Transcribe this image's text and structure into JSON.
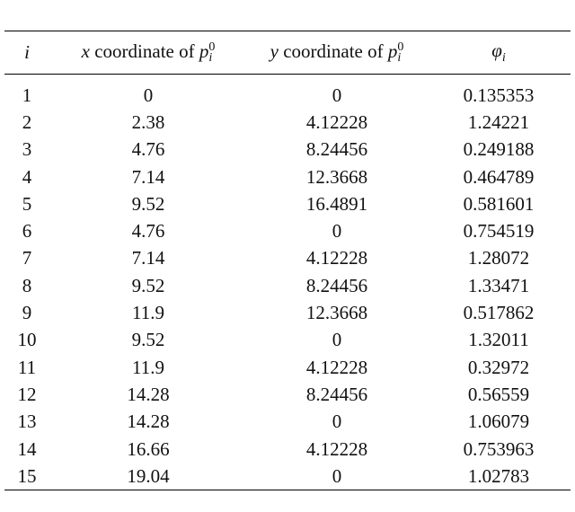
{
  "table": {
    "headers": [
      "i",
      "x coordinate of p_i^0",
      "y coordinate of p_i^0",
      "φ_i"
    ],
    "header_parts": {
      "x_var": "x",
      "y_var": "y",
      "coord_text": " coordinate of ",
      "p": "p",
      "sub": "i",
      "sup": "0",
      "phi": "ϕ",
      "i": "i"
    },
    "rows": [
      [
        "1",
        "0",
        "0",
        "0.135353"
      ],
      [
        "2",
        "2.38",
        "4.12228",
        "1.24221"
      ],
      [
        "3",
        "4.76",
        "8.24456",
        "0.249188"
      ],
      [
        "4",
        "7.14",
        "12.3668",
        "0.464789"
      ],
      [
        "5",
        "9.52",
        "16.4891",
        "0.581601"
      ],
      [
        "6",
        "4.76",
        "0",
        "0.754519"
      ],
      [
        "7",
        "7.14",
        "4.12228",
        "1.28072"
      ],
      [
        "8",
        "9.52",
        "8.24456",
        "1.33471"
      ],
      [
        "9",
        "11.9",
        "12.3668",
        "0.517862"
      ],
      [
        "10",
        "9.52",
        "0",
        "1.32011"
      ],
      [
        "11",
        "11.9",
        "4.12228",
        "0.32972"
      ],
      [
        "12",
        "14.28",
        "8.24456",
        "0.56559"
      ],
      [
        "13",
        "14.28",
        "0",
        "1.06079"
      ],
      [
        "14",
        "16.66",
        "4.12228",
        "0.753963"
      ],
      [
        "15",
        "19.04",
        "0",
        "1.02783"
      ]
    ]
  }
}
